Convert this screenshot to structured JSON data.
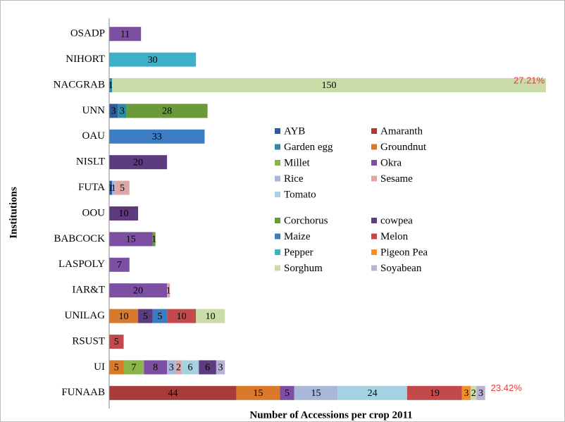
{
  "chart_data": {
    "type": "stacked-barh",
    "x_label": "Number of Accessions per crop 2011",
    "y_label": "Institutions",
    "categories": [
      "OSADP",
      "NIHORT",
      "NACGRAB",
      "UNN",
      "OAU",
      "NISLT",
      "FUTA",
      "OOU",
      "BABCOCK",
      "LASPOLY",
      "IAR&T",
      "UNILAG",
      "RSUST",
      "UI",
      "FUNAAB"
    ],
    "xlim": [
      0,
      152
    ],
    "series": [
      {
        "name": "AYB",
        "color": "#2e5c99",
        "values": [
          null,
          null,
          null,
          3,
          null,
          null,
          1,
          null,
          null,
          null,
          null,
          null,
          null,
          null,
          null
        ]
      },
      {
        "name": "Amaranth",
        "color": "#a83c3a",
        "values": [
          null,
          null,
          null,
          null,
          null,
          null,
          null,
          null,
          null,
          null,
          null,
          null,
          null,
          null,
          44
        ]
      },
      {
        "name": "Garden egg",
        "color": "#2e8ba5",
        "values": [
          null,
          null,
          1,
          3,
          null,
          null,
          null,
          null,
          null,
          null,
          null,
          null,
          null,
          null,
          null
        ]
      },
      {
        "name": "Groundnut",
        "color": "#d9792c",
        "values": [
          null,
          null,
          null,
          null,
          null,
          null,
          null,
          null,
          null,
          null,
          null,
          10,
          null,
          5,
          15
        ]
      },
      {
        "name": "Millet",
        "color": "#8bb548",
        "values": [
          null,
          null,
          null,
          null,
          null,
          null,
          null,
          null,
          null,
          null,
          null,
          null,
          null,
          7,
          null
        ]
      },
      {
        "name": "Okra",
        "color": "#7c4fa3",
        "values": [
          11,
          null,
          null,
          null,
          null,
          null,
          null,
          null,
          15,
          7,
          20,
          null,
          null,
          8,
          5
        ]
      },
      {
        "name": "Rice",
        "color": "#a8b8d9",
        "values": [
          null,
          null,
          null,
          null,
          null,
          null,
          1,
          null,
          null,
          null,
          null,
          null,
          null,
          3,
          15
        ]
      },
      {
        "name": "Sesame",
        "color": "#dca7a6",
        "values": [
          null,
          null,
          null,
          null,
          null,
          null,
          5,
          null,
          null,
          null,
          1,
          null,
          null,
          2,
          null
        ]
      },
      {
        "name": "Tomato",
        "color": "#a6d1e1",
        "values": [
          null,
          null,
          null,
          null,
          null,
          null,
          null,
          null,
          null,
          null,
          null,
          null,
          null,
          6,
          24
        ]
      },
      {
        "name": "Corchorus",
        "color": "#6b9a3a",
        "values": [
          null,
          null,
          null,
          28,
          null,
          null,
          null,
          null,
          1,
          null,
          null,
          null,
          null,
          null,
          null
        ]
      },
      {
        "name": "cowpea",
        "color": "#5d3b7f",
        "values": [
          null,
          null,
          null,
          null,
          null,
          20,
          null,
          10,
          null,
          null,
          null,
          5,
          null,
          6,
          null
        ]
      },
      {
        "name": "Maize",
        "color": "#3b7cc2",
        "values": [
          null,
          null,
          null,
          null,
          33,
          null,
          null,
          null,
          null,
          null,
          null,
          5,
          null,
          null,
          null
        ]
      },
      {
        "name": "Melon",
        "color": "#c34a4a",
        "values": [
          null,
          null,
          null,
          null,
          null,
          null,
          null,
          null,
          null,
          null,
          null,
          10,
          5,
          null,
          19
        ]
      },
      {
        "name": "Pepper",
        "color": "#3bb1c9",
        "values": [
          null,
          30,
          null,
          null,
          null,
          null,
          null,
          null,
          null,
          null,
          null,
          null,
          null,
          null,
          null
        ]
      },
      {
        "name": "Pigeon Pea",
        "color": "#f1912b",
        "values": [
          null,
          null,
          null,
          null,
          null,
          null,
          null,
          null,
          null,
          null,
          null,
          null,
          null,
          null,
          3
        ]
      },
      {
        "name": "Sorghum",
        "color": "#cadca8",
        "values": [
          null,
          null,
          150,
          null,
          null,
          null,
          null,
          null,
          null,
          null,
          null,
          10,
          null,
          null,
          2
        ]
      },
      {
        "name": "Soyabean",
        "color": "#b9b1d2",
        "values": [
          null,
          null,
          null,
          null,
          null,
          null,
          null,
          null,
          null,
          null,
          null,
          null,
          null,
          3,
          3
        ]
      }
    ],
    "annotations": [
      {
        "label": "27.21%",
        "category": "NACGRAB"
      },
      {
        "label": "23.42%",
        "category": "FUNAAB"
      }
    ]
  }
}
